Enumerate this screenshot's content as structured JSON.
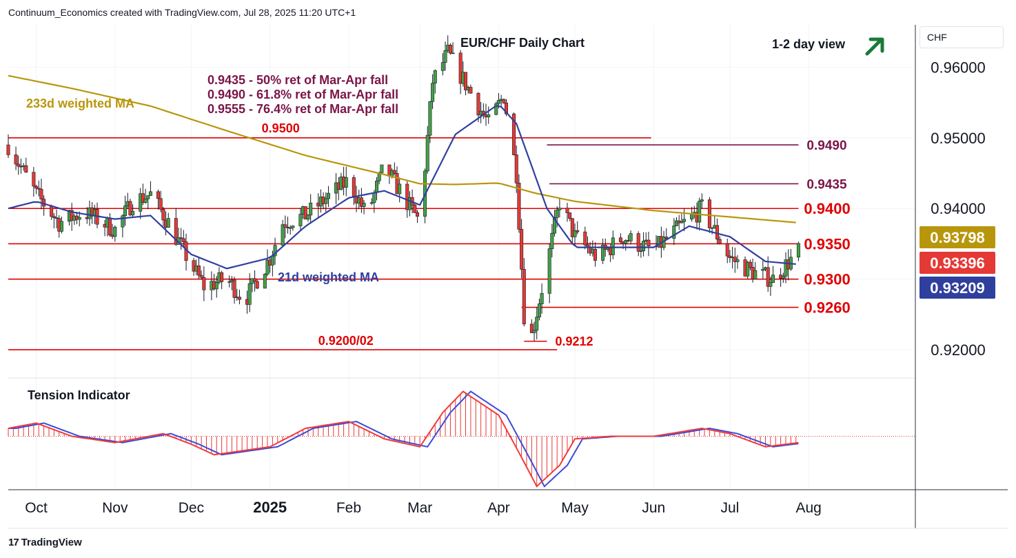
{
  "header": {
    "attribution": "Continuum_Economics created with TradingView.com, Jul 28, 2025 11:20 UTC+1",
    "currency": "CHF",
    "logo": "TradingView"
  },
  "colors": {
    "up": "#43a047",
    "down": "#e53935",
    "level_line": "#e00000",
    "fib_line": "#7b1548",
    "ma233": "#b8960c",
    "ma21": "#2f3f9e",
    "arrow": "#1b7a3a"
  },
  "chart_data": {
    "type": "candlestick",
    "title": "EUR/CHF Daily Chart",
    "view_label": "1-2 day view",
    "view_direction": "up",
    "ylim": [
      0.916,
      0.966
    ],
    "y_ticks": [
      "0.96000",
      "0.95000",
      "0.94000",
      "0.92000"
    ],
    "y_tick_values": [
      0.96,
      0.95,
      0.94,
      0.92
    ],
    "x_labels": [
      "Oct",
      "Nov",
      "Dec",
      "2025",
      "Feb",
      "Mar",
      "Apr",
      "May",
      "Jun",
      "Jul",
      "Aug"
    ],
    "x_label_dates": [
      "2024-10-01",
      "2024-11-01",
      "2024-12-01",
      "2025-01-01",
      "2025-02-01",
      "2025-03-01",
      "2025-04-01",
      "2025-05-01",
      "2025-06-01",
      "2025-07-01",
      "2025-08-01"
    ],
    "x_range": [
      "2024-09-20",
      "2025-09-12"
    ],
    "last_date": "2025-07-28",
    "price_labels": [
      {
        "text": "0.93798",
        "value": 0.93798,
        "color": "#b8960c"
      },
      {
        "text": "0.93396",
        "value": 0.93396,
        "color": "#e53935"
      },
      {
        "text": "0.93209",
        "value": 0.93209,
        "color": "#2f3f9e"
      }
    ],
    "levels": [
      {
        "value": 0.95,
        "label": "0.9500",
        "label_pos": "inline",
        "from": "2024-09-20",
        "to": "2025-05-31"
      },
      {
        "value": 0.94,
        "label": "0.9400",
        "label_pos": "right",
        "from": "2024-09-20",
        "to": "2025-07-28"
      },
      {
        "value": 0.935,
        "label": "0.9350",
        "label_pos": "right",
        "from": "2024-09-20",
        "to": "2025-07-28"
      },
      {
        "value": 0.93,
        "label": "0.9300",
        "label_pos": "right",
        "from": "2024-09-20",
        "to": "2025-07-28"
      },
      {
        "value": 0.926,
        "label": "0.9260",
        "label_pos": "right",
        "from": "2025-04-10",
        "to": "2025-07-28"
      },
      {
        "value": 0.92,
        "label": "0.9200/02",
        "label_pos": "inline",
        "from": "2024-09-20",
        "to": "2025-04-24"
      },
      {
        "value": 0.9212,
        "label": "0.9212",
        "label_pos": "inline",
        "from": "2025-04-11",
        "to": "2025-04-20"
      }
    ],
    "fib_levels": [
      {
        "value": 0.949,
        "label": "0.9490",
        "from": "2025-04-20",
        "to": "2025-07-28"
      },
      {
        "value": 0.9435,
        "label": "0.9435",
        "from": "2025-04-21",
        "to": "2025-07-28"
      }
    ],
    "notes": [
      "0.9435 - 50% ret of Mar-Apr fall",
      "0.9490 - 61.8% ret of Mar-Apr fall",
      "0.9555 - 76.4% ret of Mar-Apr fall"
    ],
    "series": [
      {
        "name": "233d weighted MA",
        "points": [
          [
            "2024-09-20",
            0.9588
          ],
          [
            "2024-10-15",
            0.957
          ],
          [
            "2024-11-15",
            0.9545
          ],
          [
            "2024-12-15",
            0.951
          ],
          [
            "2025-01-15",
            0.9475
          ],
          [
            "2025-02-15",
            0.9448
          ],
          [
            "2025-03-01",
            0.9435
          ],
          [
            "2025-03-15",
            0.9434
          ],
          [
            "2025-04-01",
            0.9436
          ],
          [
            "2025-04-15",
            0.9422
          ],
          [
            "2025-05-01",
            0.941
          ],
          [
            "2025-06-01",
            0.9397
          ],
          [
            "2025-07-01",
            0.9388
          ],
          [
            "2025-07-28",
            0.93798
          ]
        ]
      },
      {
        "name": "21d weighted MA",
        "points": [
          [
            "2024-09-20",
            0.94
          ],
          [
            "2024-10-01",
            0.941
          ],
          [
            "2024-10-15",
            0.9395
          ],
          [
            "2024-11-01",
            0.9385
          ],
          [
            "2024-11-15",
            0.939
          ],
          [
            "2024-12-01",
            0.9335
          ],
          [
            "2024-12-15",
            0.9315
          ],
          [
            "2025-01-01",
            0.933
          ],
          [
            "2025-01-15",
            0.9375
          ],
          [
            "2025-02-01",
            0.9415
          ],
          [
            "2025-02-15",
            0.9425
          ],
          [
            "2025-03-01",
            0.9405
          ],
          [
            "2025-03-15",
            0.9505
          ],
          [
            "2025-04-01",
            0.9548
          ],
          [
            "2025-04-08",
            0.952
          ],
          [
            "2025-04-20",
            0.94
          ],
          [
            "2025-05-01",
            0.9345
          ],
          [
            "2025-05-15",
            0.9345
          ],
          [
            "2025-06-01",
            0.9345
          ],
          [
            "2025-06-15",
            0.9375
          ],
          [
            "2025-07-01",
            0.936
          ],
          [
            "2025-07-15",
            0.9325
          ],
          [
            "2025-07-28",
            0.93209
          ]
        ]
      },
      {
        "name": "price",
        "points": [
          [
            "2024-09-20",
            0.949
          ],
          [
            "2024-10-01",
            0.942
          ],
          [
            "2024-10-10",
            0.938
          ],
          [
            "2024-10-20",
            0.9395
          ],
          [
            "2024-11-01",
            0.937
          ],
          [
            "2024-11-08",
            0.941
          ],
          [
            "2024-11-15",
            0.942
          ],
          [
            "2024-11-22",
            0.938
          ],
          [
            "2024-12-01",
            0.932
          ],
          [
            "2024-12-06",
            0.929
          ],
          [
            "2024-12-15",
            0.93
          ],
          [
            "2024-12-22",
            0.927
          ],
          [
            "2025-01-01",
            0.933
          ],
          [
            "2025-01-06",
            0.938
          ],
          [
            "2025-01-15",
            0.939
          ],
          [
            "2025-01-25",
            0.942
          ],
          [
            "2025-02-01",
            0.944
          ],
          [
            "2025-02-08",
            0.939
          ],
          [
            "2025-02-15",
            0.946
          ],
          [
            "2025-02-22",
            0.942
          ],
          [
            "2025-03-01",
            0.938
          ],
          [
            "2025-03-06",
            0.958
          ],
          [
            "2025-03-12",
            0.962
          ],
          [
            "2025-03-20",
            0.957
          ],
          [
            "2025-03-28",
            0.952
          ],
          [
            "2025-04-03",
            0.956
          ],
          [
            "2025-04-08",
            0.945
          ],
          [
            "2025-04-11",
            0.925
          ],
          [
            "2025-04-14",
            0.922
          ],
          [
            "2025-04-20",
            0.932
          ],
          [
            "2025-04-25",
            0.941
          ],
          [
            "2025-05-01",
            0.936
          ],
          [
            "2025-05-10",
            0.933
          ],
          [
            "2025-05-20",
            0.936
          ],
          [
            "2025-06-01",
            0.934
          ],
          [
            "2025-06-10",
            0.937
          ],
          [
            "2025-06-20",
            0.94
          ],
          [
            "2025-07-01",
            0.933
          ],
          [
            "2025-07-10",
            0.931
          ],
          [
            "2025-07-18",
            0.93
          ],
          [
            "2025-07-28",
            0.93396
          ]
        ]
      }
    ],
    "oscillator": {
      "name": "Tension Indicator",
      "ylim": [
        -1.0,
        1.0
      ],
      "points": [
        [
          "2024-09-20",
          0.15
        ],
        [
          "2024-10-01",
          0.25
        ],
        [
          "2024-10-15",
          0.0
        ],
        [
          "2024-11-01",
          -0.12
        ],
        [
          "2024-11-20",
          0.05
        ],
        [
          "2024-12-01",
          -0.15
        ],
        [
          "2024-12-10",
          -0.35
        ],
        [
          "2025-01-01",
          -0.2
        ],
        [
          "2025-01-15",
          0.15
        ],
        [
          "2025-02-01",
          0.28
        ],
        [
          "2025-02-15",
          -0.05
        ],
        [
          "2025-03-01",
          -0.2
        ],
        [
          "2025-03-10",
          0.45
        ],
        [
          "2025-03-18",
          0.85
        ],
        [
          "2025-04-01",
          0.4
        ],
        [
          "2025-04-10",
          -0.4
        ],
        [
          "2025-04-16",
          -0.95
        ],
        [
          "2025-04-25",
          -0.55
        ],
        [
          "2025-05-01",
          -0.05
        ],
        [
          "2025-05-15",
          0.0
        ],
        [
          "2025-06-01",
          0.0
        ],
        [
          "2025-06-20",
          0.15
        ],
        [
          "2025-07-01",
          0.05
        ],
        [
          "2025-07-15",
          -0.2
        ],
        [
          "2025-07-28",
          -0.12
        ]
      ]
    }
  }
}
